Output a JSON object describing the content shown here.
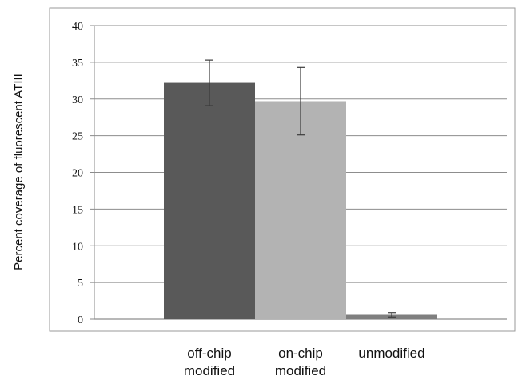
{
  "chart_data": {
    "type": "bar",
    "title": "",
    "xlabel": "",
    "ylabel": "Percent coverage of fluorescent ATIII",
    "ylim": [
      0,
      40
    ],
    "yticks": [
      0,
      5,
      10,
      15,
      20,
      25,
      30,
      35,
      40
    ],
    "grid": true,
    "legend": "none",
    "categories": [
      [
        "off-chip",
        "modified"
      ],
      [
        "on-chip",
        "modified"
      ],
      [
        "unmodified"
      ]
    ],
    "values": [
      32.2,
      29.7,
      0.6
    ],
    "error_bars": [
      3.1,
      4.6,
      0.3
    ],
    "colors": [
      "#595959",
      "#b3b3b3",
      "#7f7f7f"
    ]
  }
}
